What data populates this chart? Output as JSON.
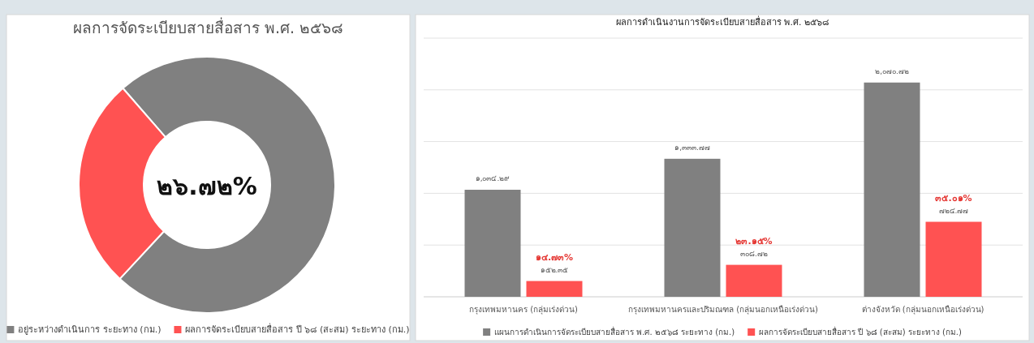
{
  "chart_data": [
    {
      "type": "donut",
      "title": "ผลการจัดระเบียบสายสื่อสาร พ.ศ. ๒๕๖๘",
      "categories": [
        "อยู่ระหว่างดำเนินการ ระยะทาง (กม.)",
        "ผลการจัดระเบียบสายสื่อสาร ปี ๖๘ (สะสม) ระยะทาง (กม.)"
      ],
      "values": [
        73.28,
        26.72
      ],
      "colors": [
        "#808080",
        "#ff5252"
      ],
      "legend": "bottom",
      "annotations": [
        "๒๖.๗๒%"
      ]
    },
    {
      "type": "bar",
      "title": "ผลการดำเนินงานการจัดระเบียบสายสื่อสาร พ.ศ. ๒๕๖๘",
      "categories": [
        "กรุงเทพมหานคร (กลุ่มเร่งด่วน)",
        "กรุงเทพมหานครและปริมณฑล (กลุ่มนอกเหนือเร่งด่วน)",
        "ต่างจังหวัด (กลุ่มนอกเหนือเร่งด่วน)"
      ],
      "series": [
        {
          "name": "แผนการดำเนินการจัดระเบียบสายสื่อสาร พ.ศ. ๒๕๖๘ ระยะทาง (กม.)",
          "color": "#808080",
          "values": [
            1034.29,
            1333.77,
            2070.72
          ],
          "value_labels": [
            "๑,๐๓๔.๒๙",
            "๑,๓๓๓.๗๗",
            "๒,๐๗๐.๗๒"
          ]
        },
        {
          "name": "ผลการจัดระเบียบสายสื่อสาร ปี ๖๘ (สะสม) ระยะทาง (กม.)",
          "color": "#ff5252",
          "values": [
            152.35,
            308.72,
            724.77
          ],
          "value_labels": [
            "๑๕๒.๓๕",
            "๓๐๘.๗๒",
            "๗๒๔.๗๗"
          ]
        }
      ],
      "annotations": [
        {
          "text": "๑๔.๗๓%",
          "x": "กรุงเทพมหานคร (กลุ่มเร่งด่วน)",
          "y": 152.35
        },
        {
          "text": "๒๓.๑๕%",
          "x": "กรุงเทพมหานครและปริมณฑล (กลุ่มนอกเหนือเร่งด่วน)",
          "y": 308.72
        },
        {
          "text": "๓๕.๐๑%",
          "x": "ต่างจังหวัด (กลุ่มนอกเหนือเร่งด่วน)",
          "y": 724.77
        }
      ],
      "ylim": [
        0,
        2500
      ],
      "yticks": [
        {
          "value": 0,
          "label": null
        },
        {
          "value": 500,
          "label": null
        },
        {
          "value": 1000,
          "label": null
        },
        {
          "value": 1500,
          "label": null
        },
        {
          "value": 2000,
          "label": null
        },
        {
          "value": 2500,
          "label": null
        }
      ],
      "grid": "y",
      "legend": "bottom",
      "tick_labels": "x"
    }
  ]
}
